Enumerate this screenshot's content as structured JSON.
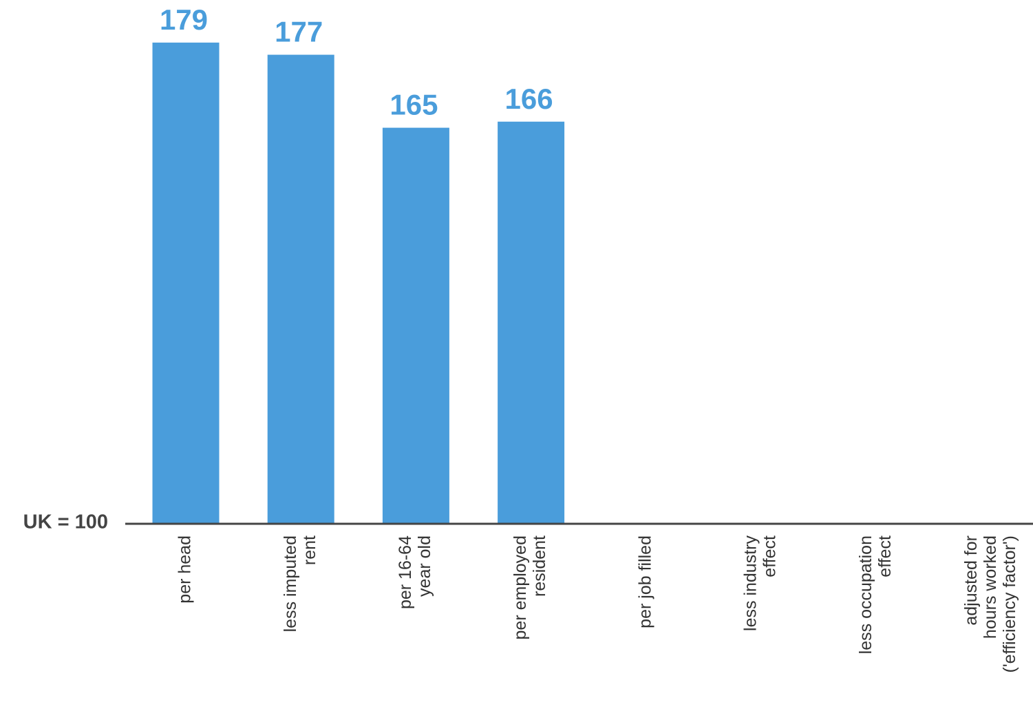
{
  "chart_data": {
    "type": "bar",
    "categories": [
      [
        "per head"
      ],
      [
        "less imputed",
        "rent"
      ],
      [
        "per 16-64",
        "year old"
      ],
      [
        "per employed",
        "resident"
      ],
      [
        "per job filled"
      ],
      [
        "less industry",
        "effect"
      ],
      [
        "less occupation",
        "effect"
      ],
      [
        "adjusted for",
        "hours worked",
        "('efficiency factor')"
      ]
    ],
    "values": [
      179,
      177,
      165,
      166,
      null,
      null,
      null,
      null
    ],
    "color": "#4a9ddb",
    "ylim": [
      100,
      186
    ],
    "baseline": {
      "value": 100,
      "label": "UK = 100"
    }
  }
}
